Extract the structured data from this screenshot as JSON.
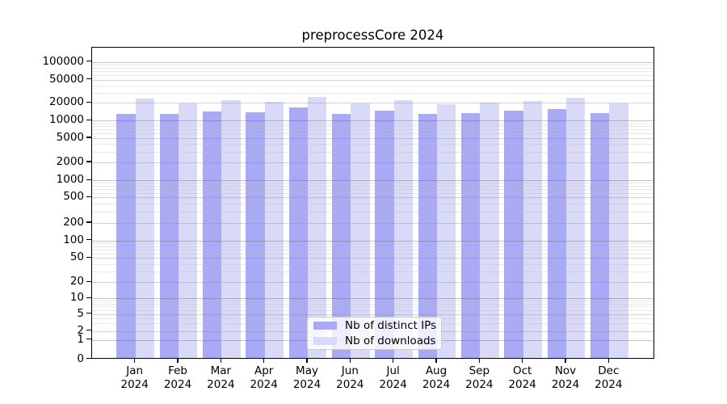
{
  "chart_data": {
    "type": "bar",
    "title": "preprocessCore 2024",
    "categories": [
      "Jan",
      "Feb",
      "Mar",
      "Apr",
      "May",
      "Jun",
      "Jul",
      "Aug",
      "Sep",
      "Oct",
      "Nov",
      "Dec"
    ],
    "year_label": "2024",
    "series": [
      {
        "name": "Nb of distinct IPs",
        "color": "#a9a9f6",
        "values": [
          13000,
          13000,
          14400,
          14000,
          16900,
          13200,
          14800,
          13000,
          13300,
          14800,
          15700,
          13300
        ]
      },
      {
        "name": "Nb of downloads",
        "color": "#d9d9f8",
        "values": [
          23400,
          19500,
          22100,
          20900,
          25100,
          19900,
          22000,
          19200,
          20000,
          21800,
          24700,
          19900
        ]
      }
    ],
    "yticks": [
      100000,
      50000,
      20000,
      10000,
      5000,
      2000,
      1000,
      500,
      200,
      100,
      50,
      20,
      10,
      5,
      2,
      1,
      0
    ],
    "yscale": "log (symlog near zero)",
    "ylim": [
      0,
      150000
    ],
    "xlabel": "",
    "ylabel": "",
    "grid": true,
    "legend_position": "lower center"
  },
  "colors": {
    "axis": "#000000",
    "grid_major": "#c0c0c0",
    "grid_minor": "#e8e8e8",
    "legend_border": "#cccccc",
    "background": "#ffffff"
  }
}
